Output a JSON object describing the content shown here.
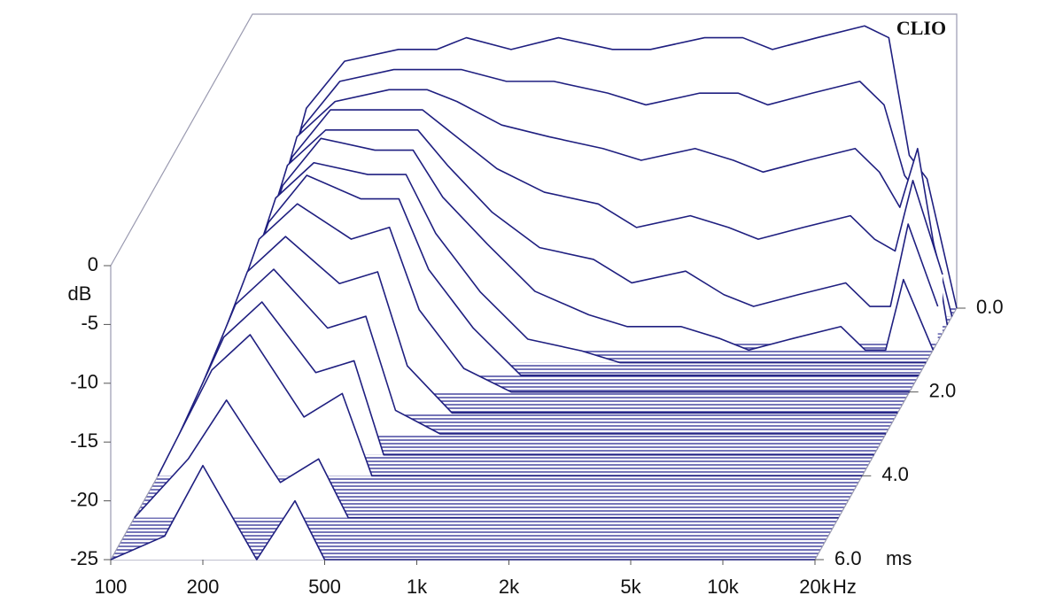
{
  "chart_data": {
    "type": "waterfall",
    "brand": "CLIO",
    "x_unit": "Hz",
    "y_unit": "dB",
    "z_unit": "ms",
    "log_x": true,
    "color": "#1f1f80",
    "x": [
      100,
      150,
      200,
      300,
      400,
      500,
      700,
      1000,
      1500,
      2000,
      3000,
      4000,
      5000,
      7000,
      10000,
      12000,
      14000,
      16000,
      20000
    ],
    "xlim": [
      100,
      20000
    ],
    "xticks": [
      100,
      200,
      500,
      {
        "value": 1000,
        "label": "1k"
      },
      {
        "value": 2000,
        "label": "2k"
      },
      {
        "value": 5000,
        "label": "5k"
      },
      {
        "value": 10000,
        "label": "10k"
      },
      {
        "value": 20000,
        "label": "20k"
      }
    ],
    "ylim": [
      -25,
      0
    ],
    "yticks": [
      0,
      -5,
      -10,
      -15,
      -20,
      -25
    ],
    "zlim": [
      0,
      6
    ],
    "zticks": [
      {
        "value": 0,
        "label": "0.0"
      },
      {
        "value": 2,
        "label": "2.0"
      },
      {
        "value": 4,
        "label": "4.0"
      },
      {
        "value": 6,
        "label": "6.0"
      }
    ],
    "slices": [
      {
        "time": 0,
        "values": [
          -25,
          -8,
          -4,
          -3,
          -3,
          -2,
          -3,
          -2,
          -3,
          -3,
          -2,
          -2,
          -3,
          -2,
          -1,
          -2,
          -12,
          -14,
          -25
        ]
      },
      {
        "time": 0.2,
        "values": [
          -25,
          -9,
          -5,
          -4,
          -4,
          -4,
          -5,
          -5,
          -6,
          -7,
          -6,
          -6,
          -7,
          -6,
          -5,
          -7,
          -13,
          -15,
          -25
        ]
      },
      {
        "time": 0.4,
        "values": [
          -25,
          -9,
          -6,
          -5,
          -5,
          -6,
          -8,
          -9,
          -10,
          -11,
          -10,
          -11,
          -12,
          -11,
          -10,
          -12,
          -15,
          -10,
          -25
        ]
      },
      {
        "time": 0.6,
        "values": [
          -25,
          -10,
          -6,
          -6,
          -6,
          -8,
          -11,
          -13,
          -14,
          -16,
          -15,
          -16,
          -17,
          -16,
          -15,
          -17,
          -18,
          -12,
          -20
        ]
      },
      {
        "time": 0.8,
        "values": [
          -25,
          -10,
          -7,
          -7,
          -7,
          -10,
          -14,
          -17,
          -18,
          -20,
          -19,
          -21,
          -22,
          -21,
          -20,
          -22,
          -22,
          -15,
          -22
        ]
      },
      {
        "time": 1.0,
        "values": [
          -25,
          -11,
          -7,
          -8,
          -8,
          -12,
          -16,
          -20,
          -22,
          -23,
          -23,
          -24,
          -25,
          -24,
          -23,
          -25,
          -25,
          -19,
          -25
        ]
      },
      {
        "time": 1.3,
        "values": [
          -25,
          -11,
          -8,
          -9,
          -9,
          -14,
          -19,
          -23,
          -24,
          -25,
          -25,
          -25,
          -25,
          -25,
          -25,
          -25,
          -25,
          -25,
          -25
        ]
      },
      {
        "time": 1.6,
        "values": [
          -25,
          -12,
          -8,
          -10,
          -10,
          -16,
          -21,
          -25,
          -25,
          -25,
          -25,
          -25,
          -25,
          -25,
          -25,
          -25,
          -25,
          -25,
          -25
        ]
      },
      {
        "time": 2.0,
        "values": [
          -25,
          -12,
          -9,
          -12,
          -11,
          -18,
          -23,
          -25,
          -25,
          -25,
          -25,
          -25,
          -25,
          -25,
          -25,
          -25,
          -25,
          -25,
          -25
        ]
      },
      {
        "time": 2.5,
        "values": [
          -25,
          -13,
          -10,
          -14,
          -13,
          -21,
          -25,
          -25,
          -25,
          -25,
          -25,
          -25,
          -25,
          -25,
          -25,
          -25,
          -25,
          -25,
          -25
        ]
      },
      {
        "time": 3.0,
        "values": [
          -25,
          -14,
          -11,
          -16,
          -15,
          -23,
          -25,
          -25,
          -25,
          -25,
          -25,
          -25,
          -25,
          -25,
          -25,
          -25,
          -25,
          -25,
          -25
        ]
      },
      {
        "time": 3.5,
        "values": [
          -25,
          -15,
          -12,
          -18,
          -17,
          -25,
          -25,
          -25,
          -25,
          -25,
          -25,
          -25,
          -25,
          -25,
          -25,
          -25,
          -25,
          -25,
          -25
        ]
      },
      {
        "time": 4.0,
        "values": [
          -25,
          -16,
          -13,
          -20,
          -18,
          -25,
          -25,
          -25,
          -25,
          -25,
          -25,
          -25,
          -25,
          -25,
          -25,
          -25,
          -25,
          -25,
          -25
        ]
      },
      {
        "time": 5.0,
        "values": [
          -25,
          -20,
          -15,
          -22,
          -20,
          -25,
          -25,
          -25,
          -25,
          -25,
          -25,
          -25,
          -25,
          -25,
          -25,
          -25,
          -25,
          -25,
          -25
        ]
      },
      {
        "time": 6.0,
        "values": [
          -25,
          -23,
          -17,
          -25,
          -20,
          -25,
          -25,
          -25,
          -25,
          -25,
          -25,
          -25,
          -25,
          -25,
          -25,
          -25,
          -25,
          -25,
          -25
        ]
      }
    ]
  }
}
